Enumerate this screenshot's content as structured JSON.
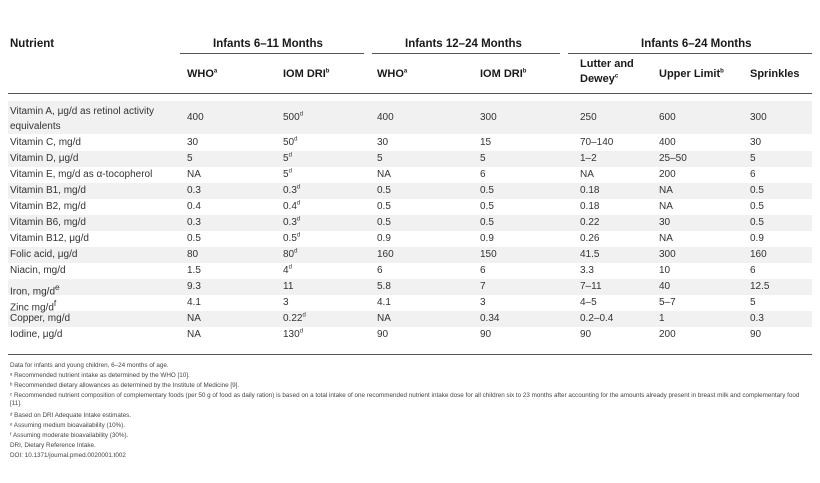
{
  "header": {
    "nutrient": "Nutrient",
    "groups": [
      "Infants 6–11 Months",
      "Infants 12–24 Months",
      "Infants 6–24 Months"
    ],
    "subcols": [
      {
        "text": "WHO",
        "sup": "a"
      },
      {
        "text": "IOM DRI",
        "sup": "b"
      },
      {
        "text": "WHO",
        "sup": "a"
      },
      {
        "text": "IOM DRI",
        "sup": "b"
      },
      {
        "text": "Lutter and",
        "text2": "Dewey",
        "sup": "c"
      },
      {
        "text": "Upper Limit",
        "sup": "b"
      },
      {
        "text": "Sprinkles",
        "sup": ""
      }
    ]
  },
  "rows": [
    {
      "name": "Vitamin A, μg/d as retinol activity equivalents",
      "vals": [
        [
          "400",
          ""
        ],
        [
          "500",
          "d"
        ],
        [
          "400",
          ""
        ],
        [
          "300",
          ""
        ],
        [
          "250",
          ""
        ],
        [
          "600",
          ""
        ],
        [
          "300",
          ""
        ]
      ]
    },
    {
      "name": "Vitamin C, mg/d",
      "vals": [
        [
          "30",
          ""
        ],
        [
          "50",
          "d"
        ],
        [
          "30",
          ""
        ],
        [
          "15",
          ""
        ],
        [
          "70–140",
          ""
        ],
        [
          "400",
          ""
        ],
        [
          "30",
          ""
        ]
      ]
    },
    {
      "name": "Vitamin D, μg/d",
      "vals": [
        [
          "5",
          ""
        ],
        [
          "5",
          "d"
        ],
        [
          "5",
          ""
        ],
        [
          "5",
          ""
        ],
        [
          "1–2",
          ""
        ],
        [
          "25–50",
          ""
        ],
        [
          "5",
          ""
        ]
      ]
    },
    {
      "name": "Vitamin E, mg/d as α-tocopherol",
      "vals": [
        [
          "NA",
          ""
        ],
        [
          "5",
          "d"
        ],
        [
          "NA",
          ""
        ],
        [
          "6",
          ""
        ],
        [
          "NA",
          ""
        ],
        [
          "200",
          ""
        ],
        [
          "6",
          ""
        ]
      ]
    },
    {
      "name": "Vitamin B1, mg/d",
      "vals": [
        [
          "0.3",
          ""
        ],
        [
          "0.3",
          "d"
        ],
        [
          "0.5",
          ""
        ],
        [
          "0.5",
          ""
        ],
        [
          "0.18",
          ""
        ],
        [
          "NA",
          ""
        ],
        [
          "0.5",
          ""
        ]
      ]
    },
    {
      "name": "Vitamin B2, mg/d",
      "vals": [
        [
          "0.4",
          ""
        ],
        [
          "0.4",
          "d"
        ],
        [
          "0.5",
          ""
        ],
        [
          "0.5",
          ""
        ],
        [
          "0.18",
          ""
        ],
        [
          "NA",
          ""
        ],
        [
          "0.5",
          ""
        ]
      ]
    },
    {
      "name": "Vitamin B6, mg/d",
      "vals": [
        [
          "0.3",
          ""
        ],
        [
          "0.3",
          "d"
        ],
        [
          "0.5",
          ""
        ],
        [
          "0.5",
          ""
        ],
        [
          "0.22",
          ""
        ],
        [
          "30",
          ""
        ],
        [
          "0.5",
          ""
        ]
      ]
    },
    {
      "name": "Vitamin B12, μg/d",
      "vals": [
        [
          "0.5",
          ""
        ],
        [
          "0.5",
          "d"
        ],
        [
          "0.9",
          ""
        ],
        [
          "0.9",
          ""
        ],
        [
          "0.26",
          ""
        ],
        [
          "NA",
          ""
        ],
        [
          "0.9",
          ""
        ]
      ]
    },
    {
      "name": "Folic acid, μg/d",
      "vals": [
        [
          "80",
          ""
        ],
        [
          "80",
          "d"
        ],
        [
          "160",
          ""
        ],
        [
          "150",
          ""
        ],
        [
          "41.5",
          ""
        ],
        [
          "300",
          ""
        ],
        [
          "160",
          ""
        ]
      ]
    },
    {
      "name": "Niacin, mg/d",
      "vals": [
        [
          "1.5",
          ""
        ],
        [
          "4",
          "d"
        ],
        [
          "6",
          ""
        ],
        [
          "6",
          ""
        ],
        [
          "3.3",
          ""
        ],
        [
          "10",
          ""
        ],
        [
          "6",
          ""
        ]
      ]
    },
    {
      "name": "Iron, mg/d",
      "sup": "e",
      "vals": [
        [
          "9.3",
          ""
        ],
        [
          "11",
          ""
        ],
        [
          "5.8",
          ""
        ],
        [
          "7",
          ""
        ],
        [
          "7–11",
          ""
        ],
        [
          "40",
          ""
        ],
        [
          "12.5",
          ""
        ]
      ]
    },
    {
      "name": "Zinc mg/d",
      "sup": "f",
      "vals": [
        [
          "4.1",
          ""
        ],
        [
          "3",
          ""
        ],
        [
          "4.1",
          ""
        ],
        [
          "3",
          ""
        ],
        [
          "4–5",
          ""
        ],
        [
          "5–7",
          ""
        ],
        [
          "5",
          ""
        ]
      ]
    },
    {
      "name": "Copper, mg/d",
      "vals": [
        [
          "NA",
          ""
        ],
        [
          "0.22",
          "d"
        ],
        [
          "NA",
          ""
        ],
        [
          "0.34",
          ""
        ],
        [
          "0.2–0.4",
          ""
        ],
        [
          "1",
          ""
        ],
        [
          "0.3",
          ""
        ]
      ]
    },
    {
      "name": "Iodine, μg/d",
      "vals": [
        [
          "NA",
          ""
        ],
        [
          "130",
          "d"
        ],
        [
          "90",
          ""
        ],
        [
          "90",
          ""
        ],
        [
          "90",
          ""
        ],
        [
          "200",
          ""
        ],
        [
          "90",
          ""
        ]
      ]
    }
  ],
  "footnotes": [
    "Data for infants and young children, 6–24 months of age.",
    "ᵃ Recommended nutrient intake as determined by the WHO [10].",
    "ᵇ Recommended dietary allowances as determined by the Institute of Medicine [9].",
    "ᶜ Recommended nutrient composition of complementary foods (per 50 g of food as daily ration) is based on a total intake of one recommended nutrient intake dose for all children six to 23 months after accounting for the amounts already present in breast milk and complementary food [11].",
    "ᵈ Based on DRI Adequate Intake estimates.",
    "ᵉ Assuming medium bioavailability (10%).",
    "ᶠ Assuming moderate bioavailability (30%).",
    "DRI, Dietary Reference Intake.",
    "DOI: 10.1371/journal.pmed.0020001.t002"
  ]
}
